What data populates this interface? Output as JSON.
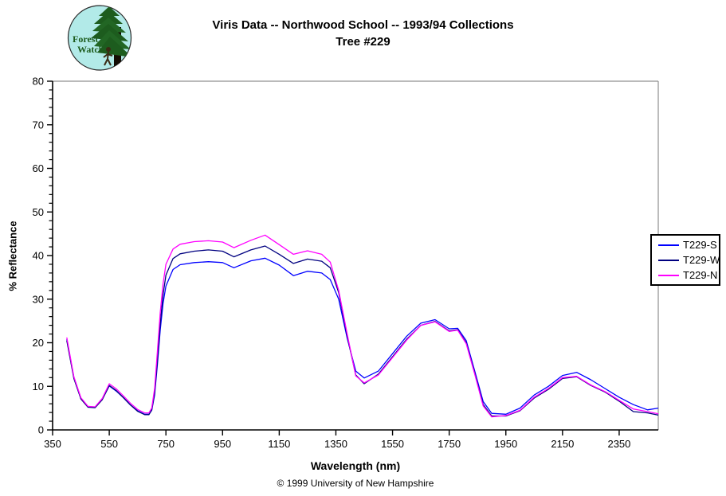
{
  "header": {
    "title_line1": "Viris Data -- Northwood School -- 1993/94 Collections",
    "title_line2": "Tree #229",
    "logo_text_line1": "Forest",
    "logo_text_line2": "Watch"
  },
  "footer": {
    "copyright": "© 1999 University of New Hampshire"
  },
  "chart_data": {
    "type": "line",
    "title": "Viris Data -- Northwood School -- 1993/94 Collections Tree #229",
    "xlabel": "Wavelength (nm)",
    "ylabel": "% Reflectance",
    "xlim": [
      350,
      2488
    ],
    "ylim": [
      0,
      80
    ],
    "x_ticks": [
      350,
      550,
      750,
      950,
      1150,
      1350,
      1550,
      1750,
      1950,
      2150,
      2350
    ],
    "y_ticks": [
      0,
      10,
      20,
      30,
      40,
      50,
      60,
      70,
      80
    ],
    "y_minor_step": 2,
    "grid": false,
    "legend_position": "right-outside",
    "frame_color": "#909090",
    "axis_color": "#000000",
    "x": [
      400,
      425,
      450,
      475,
      500,
      525,
      550,
      575,
      600,
      625,
      650,
      675,
      690,
      700,
      710,
      720,
      730,
      740,
      750,
      775,
      800,
      850,
      900,
      950,
      990,
      1050,
      1100,
      1150,
      1200,
      1250,
      1300,
      1330,
      1360,
      1390,
      1420,
      1450,
      1500,
      1550,
      1600,
      1650,
      1700,
      1750,
      1780,
      1810,
      1840,
      1870,
      1900,
      1950,
      2000,
      2050,
      2100,
      2150,
      2200,
      2250,
      2300,
      2350,
      2400,
      2450,
      2488
    ],
    "series": [
      {
        "name": "T229-S",
        "color": "#0000ff",
        "values": [
          20.8,
          12.0,
          7.2,
          5.3,
          5.2,
          7.0,
          10.1,
          8.9,
          7.4,
          5.7,
          4.4,
          3.6,
          3.6,
          4.5,
          8.0,
          15.0,
          23.0,
          29.0,
          33.0,
          36.8,
          37.9,
          38.4,
          38.6,
          38.4,
          37.2,
          38.8,
          39.4,
          37.8,
          35.4,
          36.4,
          36.0,
          34.5,
          30.0,
          21.0,
          13.5,
          11.9,
          13.5,
          17.5,
          21.5,
          24.5,
          25.3,
          23.2,
          23.3,
          20.5,
          13.5,
          6.5,
          3.8,
          3.6,
          5.0,
          8.0,
          10.0,
          12.5,
          13.2,
          11.5,
          9.5,
          7.5,
          5.8,
          4.6,
          5.0
        ]
      },
      {
        "name": "T229-W",
        "color": "#000080",
        "values": [
          20.5,
          11.8,
          7.1,
          5.2,
          5.1,
          6.9,
          10.2,
          9.0,
          7.4,
          5.7,
          4.3,
          3.5,
          3.5,
          4.6,
          8.5,
          16.0,
          24.5,
          31.0,
          35.5,
          39.3,
          40.4,
          41.0,
          41.3,
          41.0,
          39.7,
          41.3,
          42.2,
          40.3,
          38.2,
          39.2,
          38.7,
          37.2,
          31.5,
          21.5,
          12.6,
          10.6,
          12.8,
          16.8,
          20.8,
          24.0,
          24.9,
          22.7,
          23.0,
          20.0,
          13.0,
          5.8,
          3.2,
          3.2,
          4.4,
          7.3,
          9.3,
          11.8,
          12.2,
          10.2,
          8.7,
          6.6,
          4.2,
          3.9,
          3.4
        ]
      },
      {
        "name": "T229-N",
        "color": "#ff00ff",
        "values": [
          21.2,
          12.2,
          7.4,
          5.4,
          5.3,
          7.2,
          10.6,
          9.4,
          7.8,
          6.1,
          4.7,
          3.9,
          3.9,
          5.0,
          9.5,
          18.0,
          27.0,
          33.5,
          38.0,
          41.5,
          42.6,
          43.2,
          43.4,
          43.1,
          41.8,
          43.5,
          44.7,
          42.5,
          40.3,
          41.1,
          40.3,
          38.5,
          32.0,
          22.0,
          12.4,
          10.8,
          12.6,
          16.6,
          20.6,
          24.0,
          24.8,
          22.6,
          22.9,
          19.8,
          12.8,
          5.5,
          3.0,
          3.3,
          4.5,
          7.5,
          9.5,
          12.0,
          12.3,
          10.3,
          8.8,
          6.8,
          4.8,
          4.2,
          3.7
        ]
      }
    ]
  }
}
